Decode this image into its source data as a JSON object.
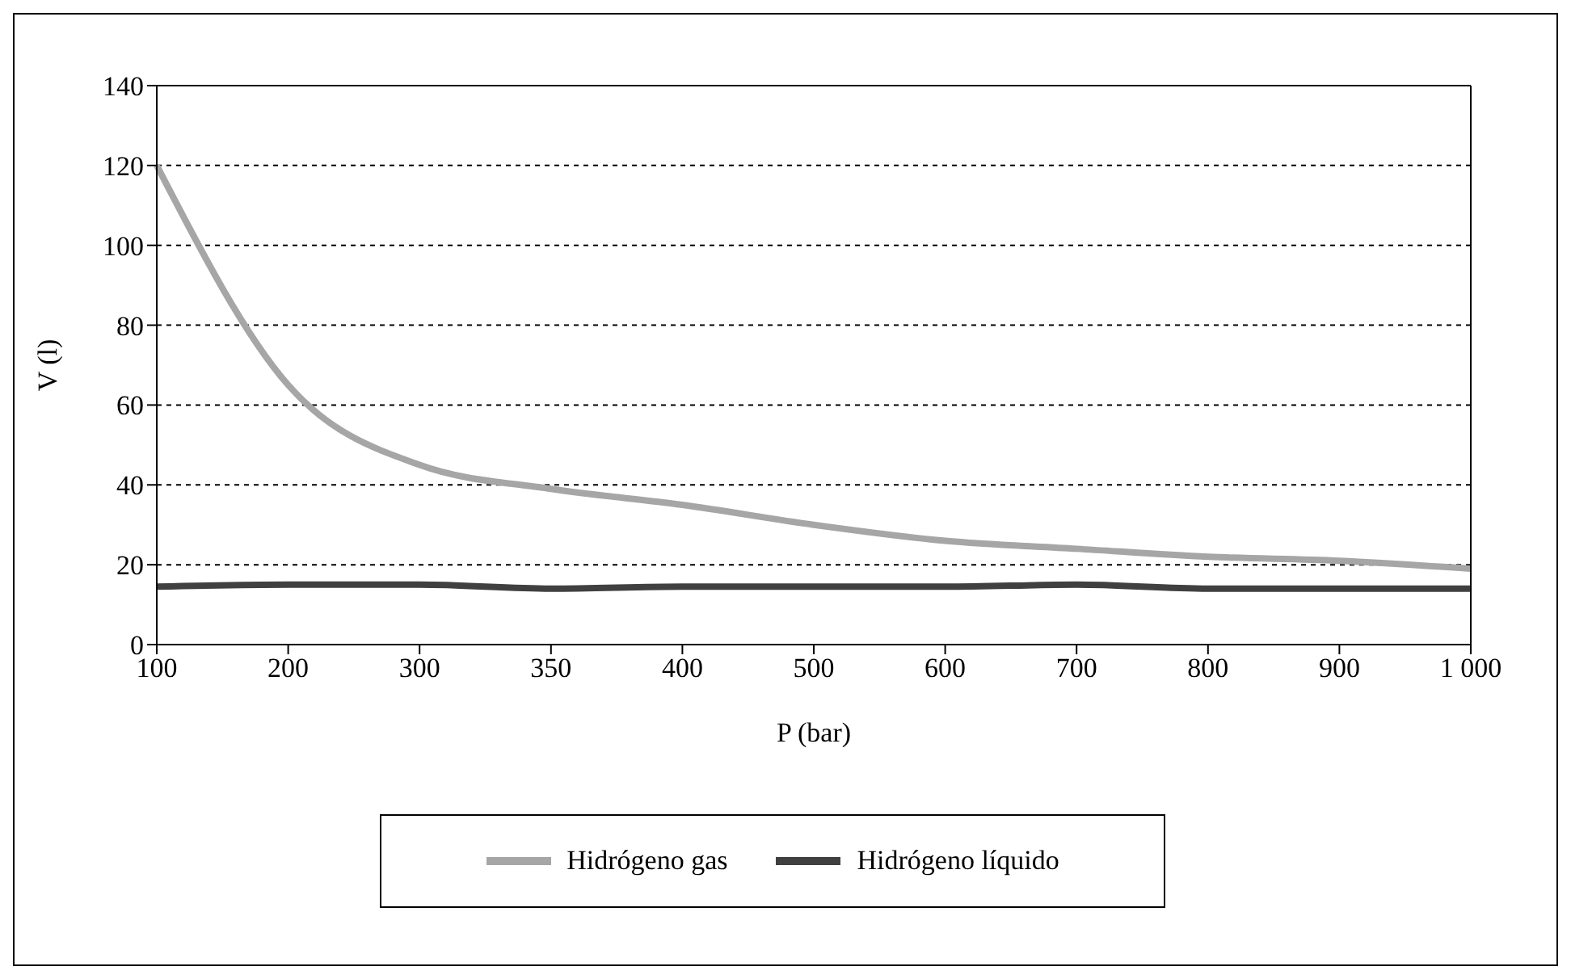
{
  "chart_data": {
    "type": "line",
    "xlabel": "P (bar)",
    "ylabel": "V (l)",
    "categories": [
      "100",
      "200",
      "300",
      "350",
      "400",
      "500",
      "600",
      "700",
      "800",
      "900",
      "1 000"
    ],
    "series": [
      {
        "name": "Hidrógeno gas",
        "color": "#a6a6a6",
        "values": [
          120,
          65,
          45,
          39,
          35,
          30,
          26,
          24,
          22,
          21,
          19
        ]
      },
      {
        "name": "Hidrógeno líquido",
        "color": "#404040",
        "values": [
          14.5,
          15,
          15,
          14,
          14.5,
          14.5,
          14.5,
          15,
          14,
          14,
          14
        ]
      }
    ],
    "ylim": [
      0,
      140
    ],
    "yticks": [
      0,
      20,
      40,
      60,
      80,
      100,
      120,
      140
    ],
    "grid": "y",
    "legend": "bottom",
    "marker": "none",
    "line_style": "solid"
  }
}
